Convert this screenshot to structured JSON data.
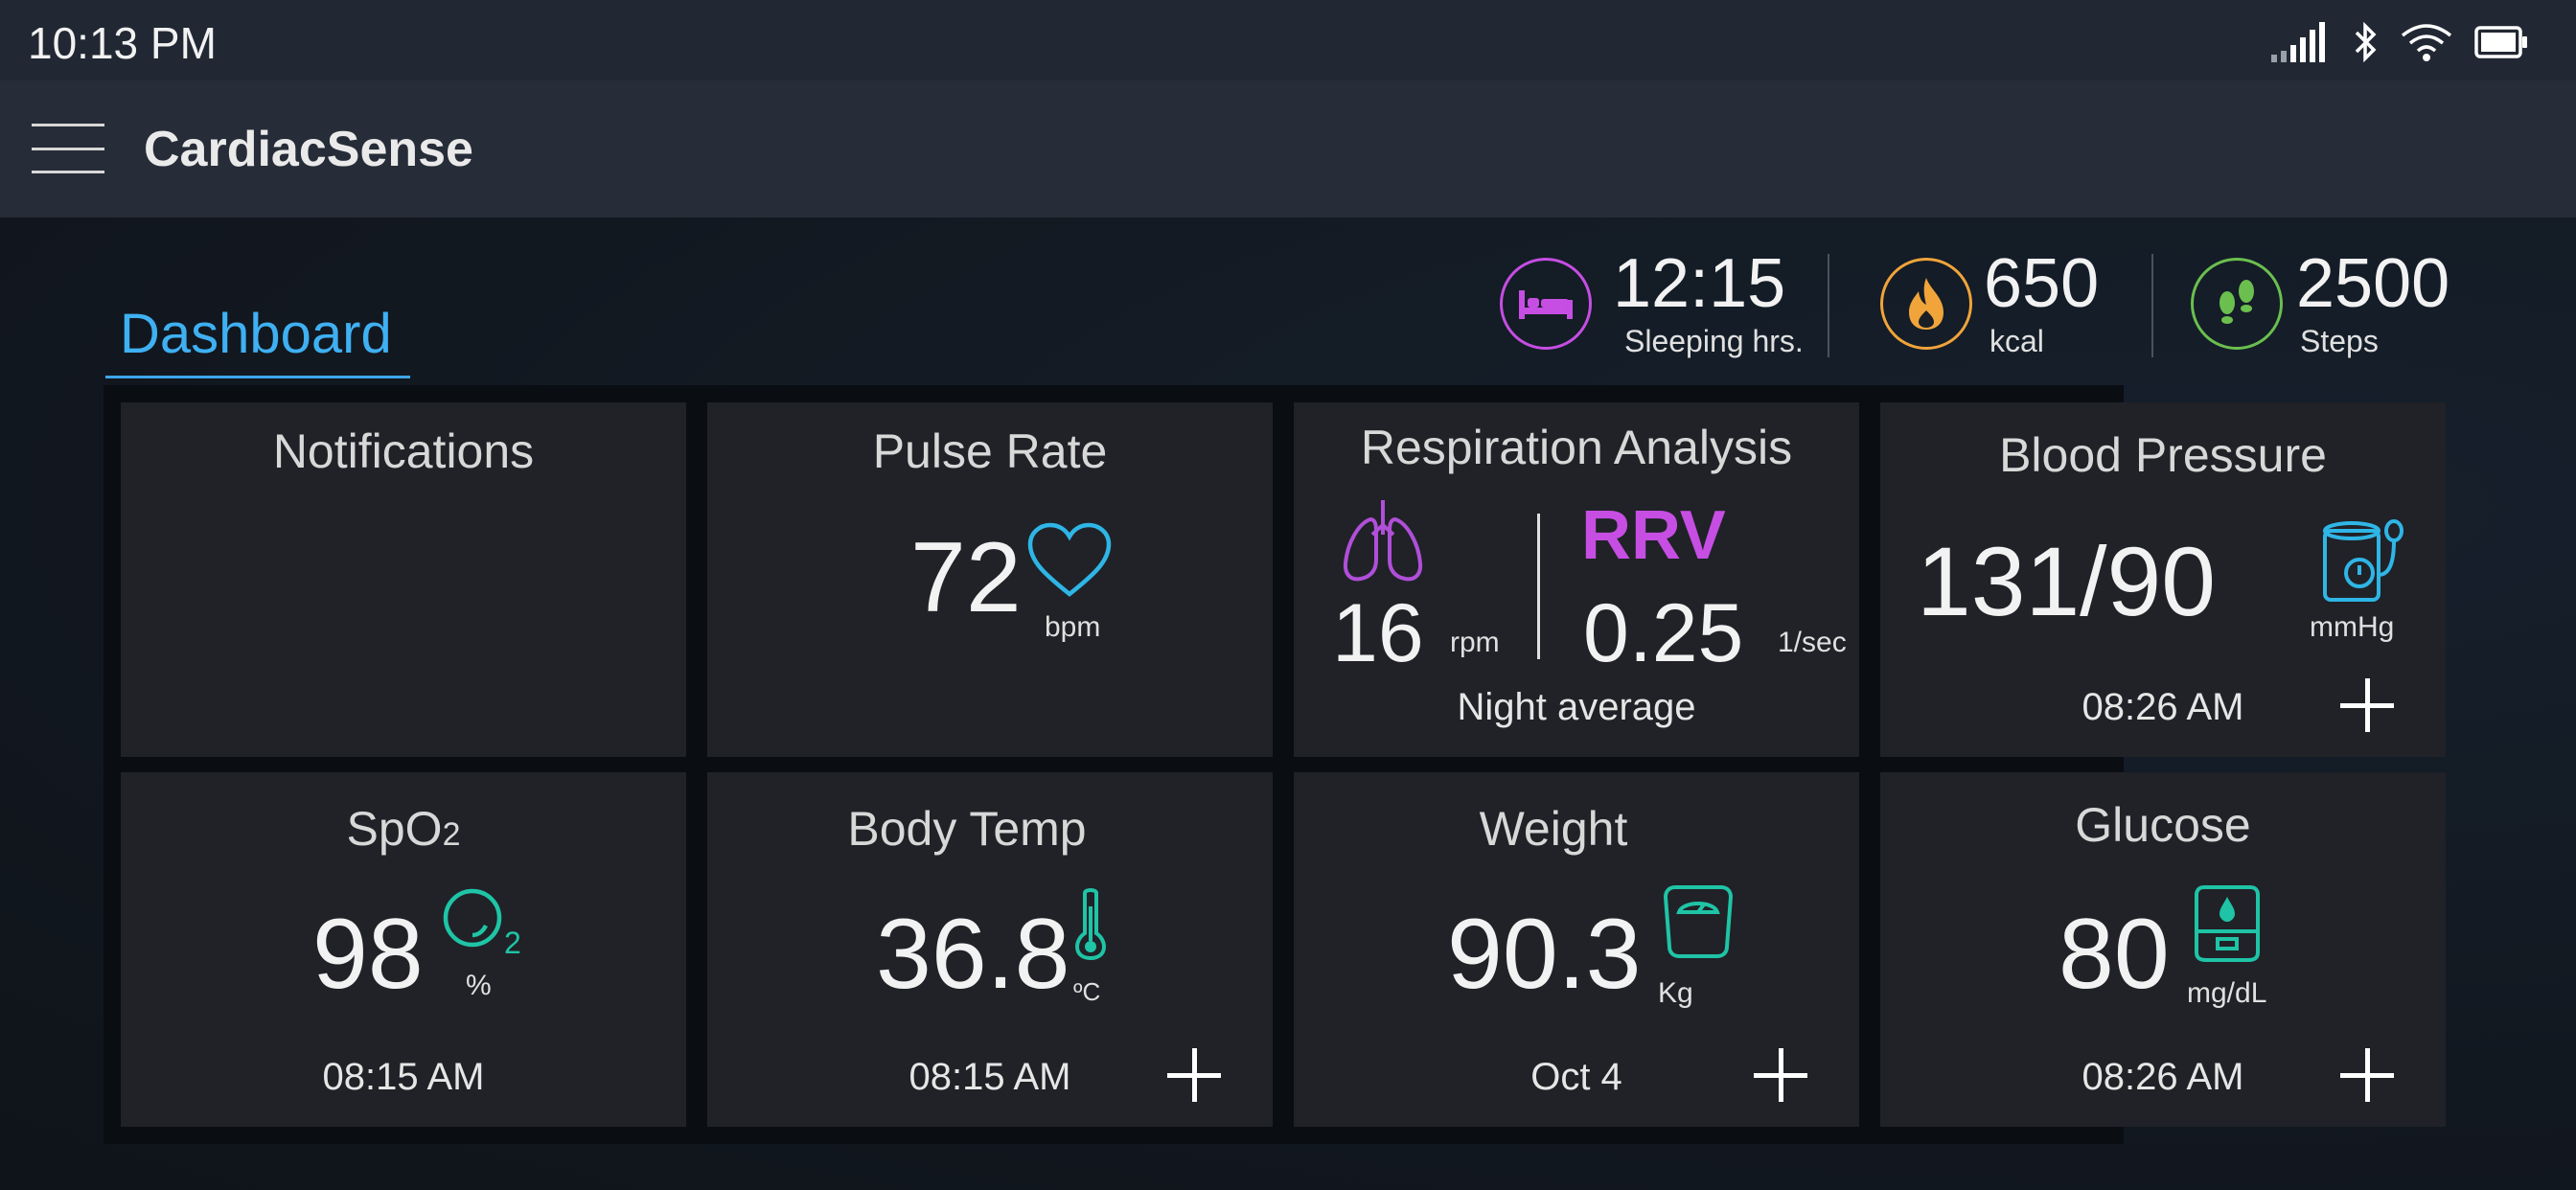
{
  "status_bar": {
    "time": "10:13 PM"
  },
  "app_bar": {
    "title": "CardiacSense"
  },
  "tabs": [
    {
      "label": "Dashboard"
    }
  ],
  "summary": {
    "sleep": {
      "value": "12:15",
      "label": "Sleeping hrs.",
      "icon": "bed-icon",
      "color": "#c64ee3"
    },
    "calories": {
      "value": "650",
      "label": "kcal",
      "icon": "flame-icon",
      "color": "#f0a43a"
    },
    "steps": {
      "value": "2500",
      "label": "Steps",
      "icon": "footprints-icon",
      "color": "#6bbf4e"
    }
  },
  "cards": {
    "notifications": {
      "title": "Notifications"
    },
    "pulse": {
      "title": "Pulse Rate",
      "value": "72",
      "unit": "bpm",
      "icon": "heart-icon"
    },
    "respiration": {
      "title": "Respiration Analysis",
      "rate_value": "16",
      "rate_unit": "rpm",
      "rrv_label": "RRV",
      "rrv_value": "0.25",
      "rrv_unit": "1/sec",
      "footer": "Night average",
      "icon": "lungs-icon"
    },
    "blood_pressure": {
      "title": "Blood Pressure",
      "value": "131/90",
      "unit": "mmHg",
      "time": "08:26 AM",
      "icon": "bp-monitor-icon"
    },
    "spo2": {
      "title_main": "SpO",
      "title_sub": "2",
      "value": "98",
      "unit": "%",
      "icon_sub": "2",
      "time": "08:15 AM",
      "icon": "oxygen-icon"
    },
    "body_temp": {
      "title": "Body Temp",
      "value": "36.8",
      "unit": "ºC",
      "time": "08:15 AM",
      "icon": "thermometer-icon"
    },
    "weight": {
      "title": "Weight",
      "value": "90.3",
      "unit": "Kg",
      "date": "Oct 4",
      "icon": "scale-icon"
    },
    "glucose": {
      "title": "Glucose",
      "value": "80",
      "unit": "mg/dL",
      "time": "08:26 AM",
      "icon": "glucometer-icon"
    }
  },
  "colors": {
    "accent_blue": "#3fb0f2",
    "icon_cyan": "#2fb5e6",
    "icon_teal": "#1fc4a6",
    "rrv_purple": "#c64ee3",
    "lung_purple": "#b04fd8"
  }
}
